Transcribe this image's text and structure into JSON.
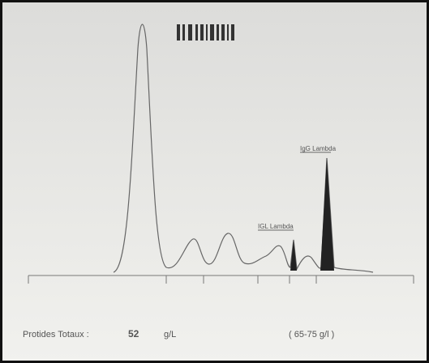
{
  "report": {
    "peak_labels": [
      "IgG Lambda",
      "IGL Lambda"
    ],
    "total_protein": {
      "label": "Protides Totaux :",
      "value": 52,
      "unit": "g/L",
      "reference": "( 65-75 g/l )"
    }
  }
}
